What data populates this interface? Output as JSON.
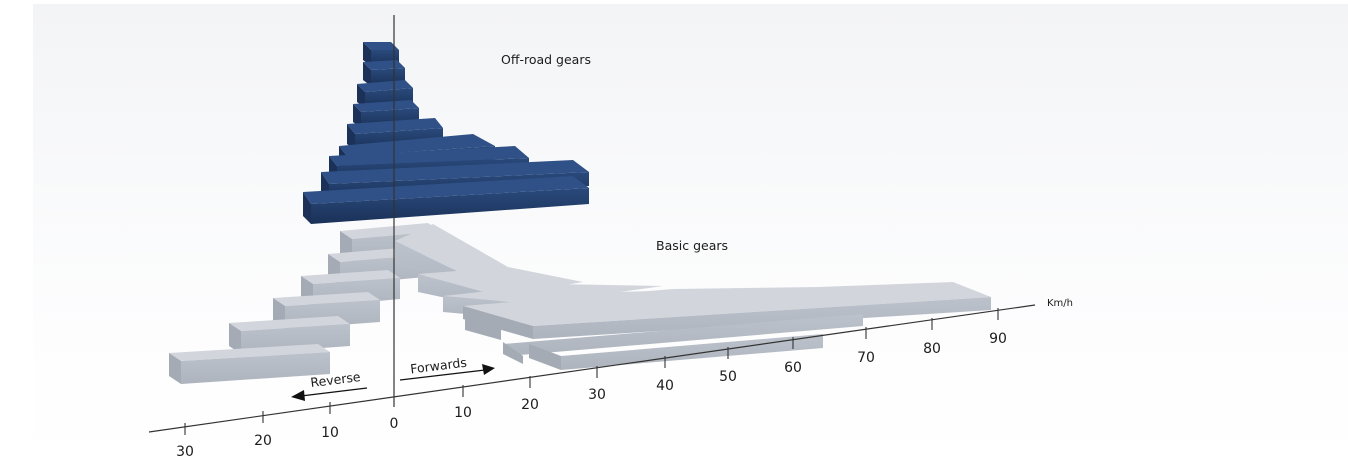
{
  "labels": {
    "offroad": "Off-road gears",
    "basic": "Basic gears",
    "reverse": "Reverse",
    "forwards": "Forwards",
    "unit": "Km/h"
  },
  "axis": {
    "reverse_ticks": [
      "30",
      "20",
      "10"
    ],
    "zero": "0",
    "forward_ticks": [
      "10",
      "20",
      "30",
      "40",
      "50",
      "60",
      "70",
      "80",
      "90"
    ]
  },
  "colors": {
    "offroad": "#1f3a66",
    "basic": "#c7ccd4",
    "background": "#f3f4f6"
  }
}
